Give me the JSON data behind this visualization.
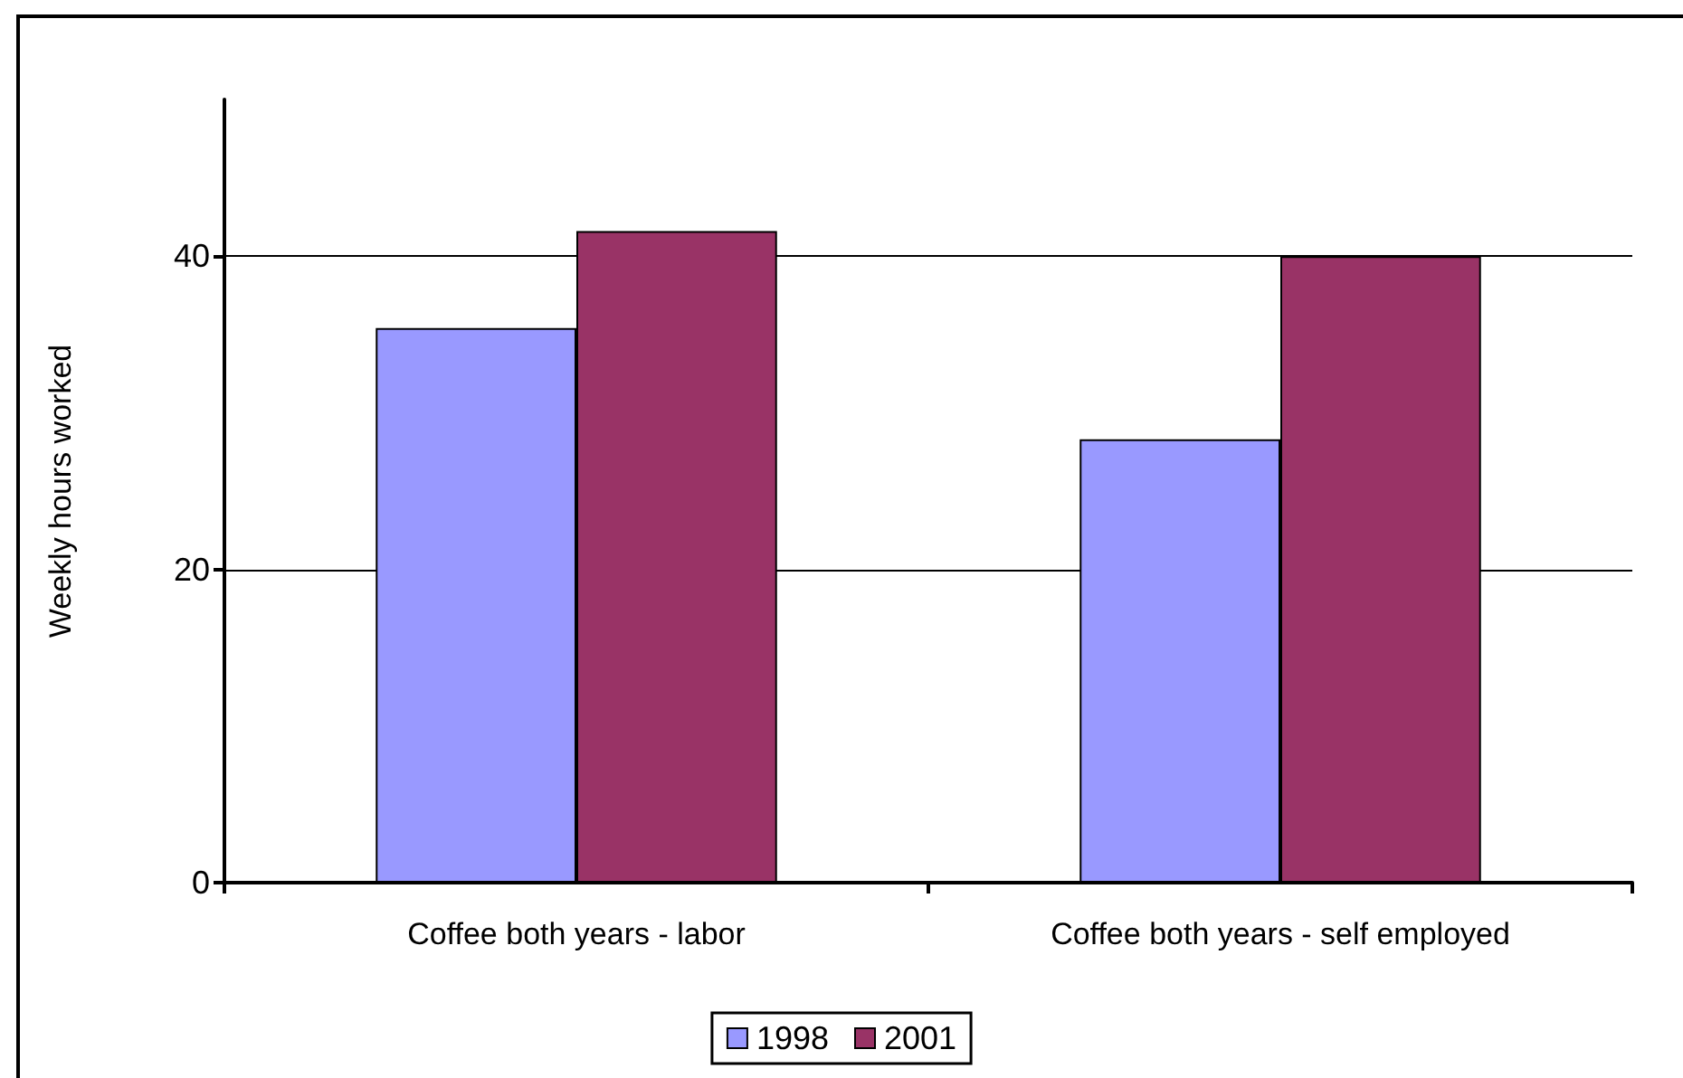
{
  "chart_data": {
    "type": "bar",
    "ylabel": "Weekly hours worked",
    "categories": [
      "Coffee both years - labor",
      "Coffee both years - self employed"
    ],
    "series": [
      {
        "name": "1998",
        "color": "#9999ff",
        "values": [
          35.4,
          28.3
        ]
      },
      {
        "name": "2001",
        "color": "#993366",
        "values": [
          41.6,
          40
        ]
      }
    ],
    "ylim": [
      0,
      50
    ],
    "yticks": [
      0,
      20,
      40
    ],
    "grid": "y",
    "legend": "bottom"
  }
}
